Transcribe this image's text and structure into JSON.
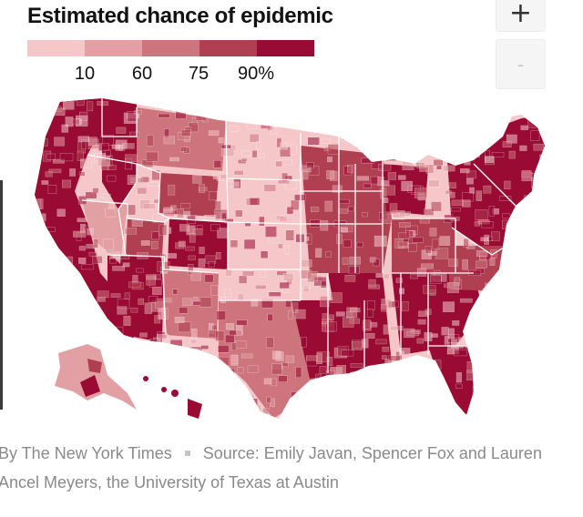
{
  "title": "Estimated chance of epidemic",
  "legend": {
    "colors": [
      "#f6c7c9",
      "#e2a0a5",
      "#cd747c",
      "#b03f52",
      "#9a0b34"
    ],
    "ticks": [
      "10",
      "60",
      "75",
      "90%"
    ]
  },
  "controls": {
    "zoom_in": "+",
    "zoom_out": "-"
  },
  "credit": {
    "byline": "By The New York Times",
    "source_line1": "Source: Emily Javan, Spencer Fox and Lauren",
    "source_line2": "Ancel Meyers, the University of Texas at Austin"
  },
  "map_fill": {
    "base": "#f6c7c9",
    "county_border": "#ffffff",
    "state_border": "#ffffff"
  },
  "map_regions": [
    {
      "name": "washington",
      "level": 4
    },
    {
      "name": "california",
      "level": 4
    },
    {
      "name": "arizona",
      "level": 4
    },
    {
      "name": "florida",
      "level": 4
    },
    {
      "name": "northeast",
      "level": 4
    },
    {
      "name": "michigan",
      "level": 4
    },
    {
      "name": "louisiana-mississippi",
      "level": 4
    },
    {
      "name": "colorado",
      "level": 4
    },
    {
      "name": "great-plains",
      "level": 0
    },
    {
      "name": "nevada",
      "level": 1
    },
    {
      "name": "montana",
      "level": 2
    },
    {
      "name": "texas",
      "level": 2
    },
    {
      "name": "alaska",
      "level": 1
    },
    {
      "name": "hawaii",
      "level": 4
    }
  ]
}
